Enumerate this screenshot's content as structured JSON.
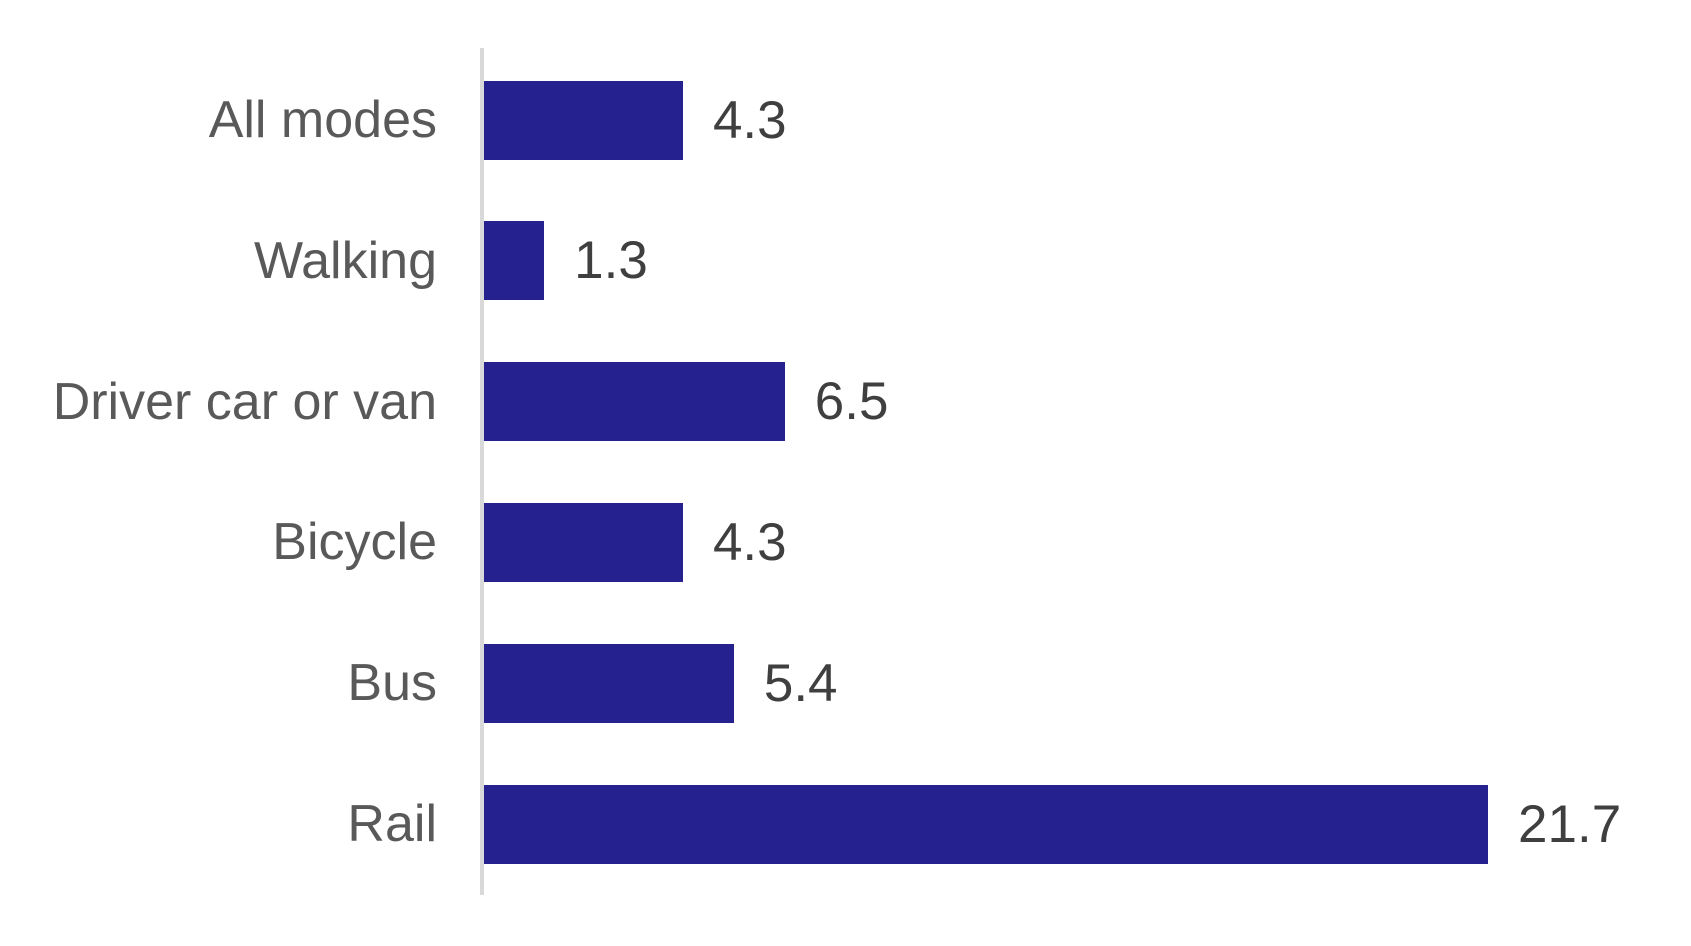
{
  "chart_data": {
    "type": "bar",
    "orientation": "horizontal",
    "title": "",
    "xlabel": "",
    "ylabel": "",
    "categories": [
      "All modes",
      "Walking",
      "Driver car or van",
      "Bicycle",
      "Bus",
      "Rail"
    ],
    "values": [
      4.3,
      1.3,
      6.5,
      4.3,
      5.4,
      21.7
    ],
    "value_labels": [
      "4.3",
      "1.3",
      "6.5",
      "4.3",
      "5.4",
      "21.7"
    ],
    "xlim": [
      0,
      26
    ],
    "grid": false,
    "legend": "none",
    "data_labels": "outside-end",
    "bar_color": "#25218f",
    "category_label_color": "#595959",
    "value_label_color": "#3f3f3f",
    "axis_line_color": "#d9d9d9",
    "background_color": "#ffffff"
  }
}
